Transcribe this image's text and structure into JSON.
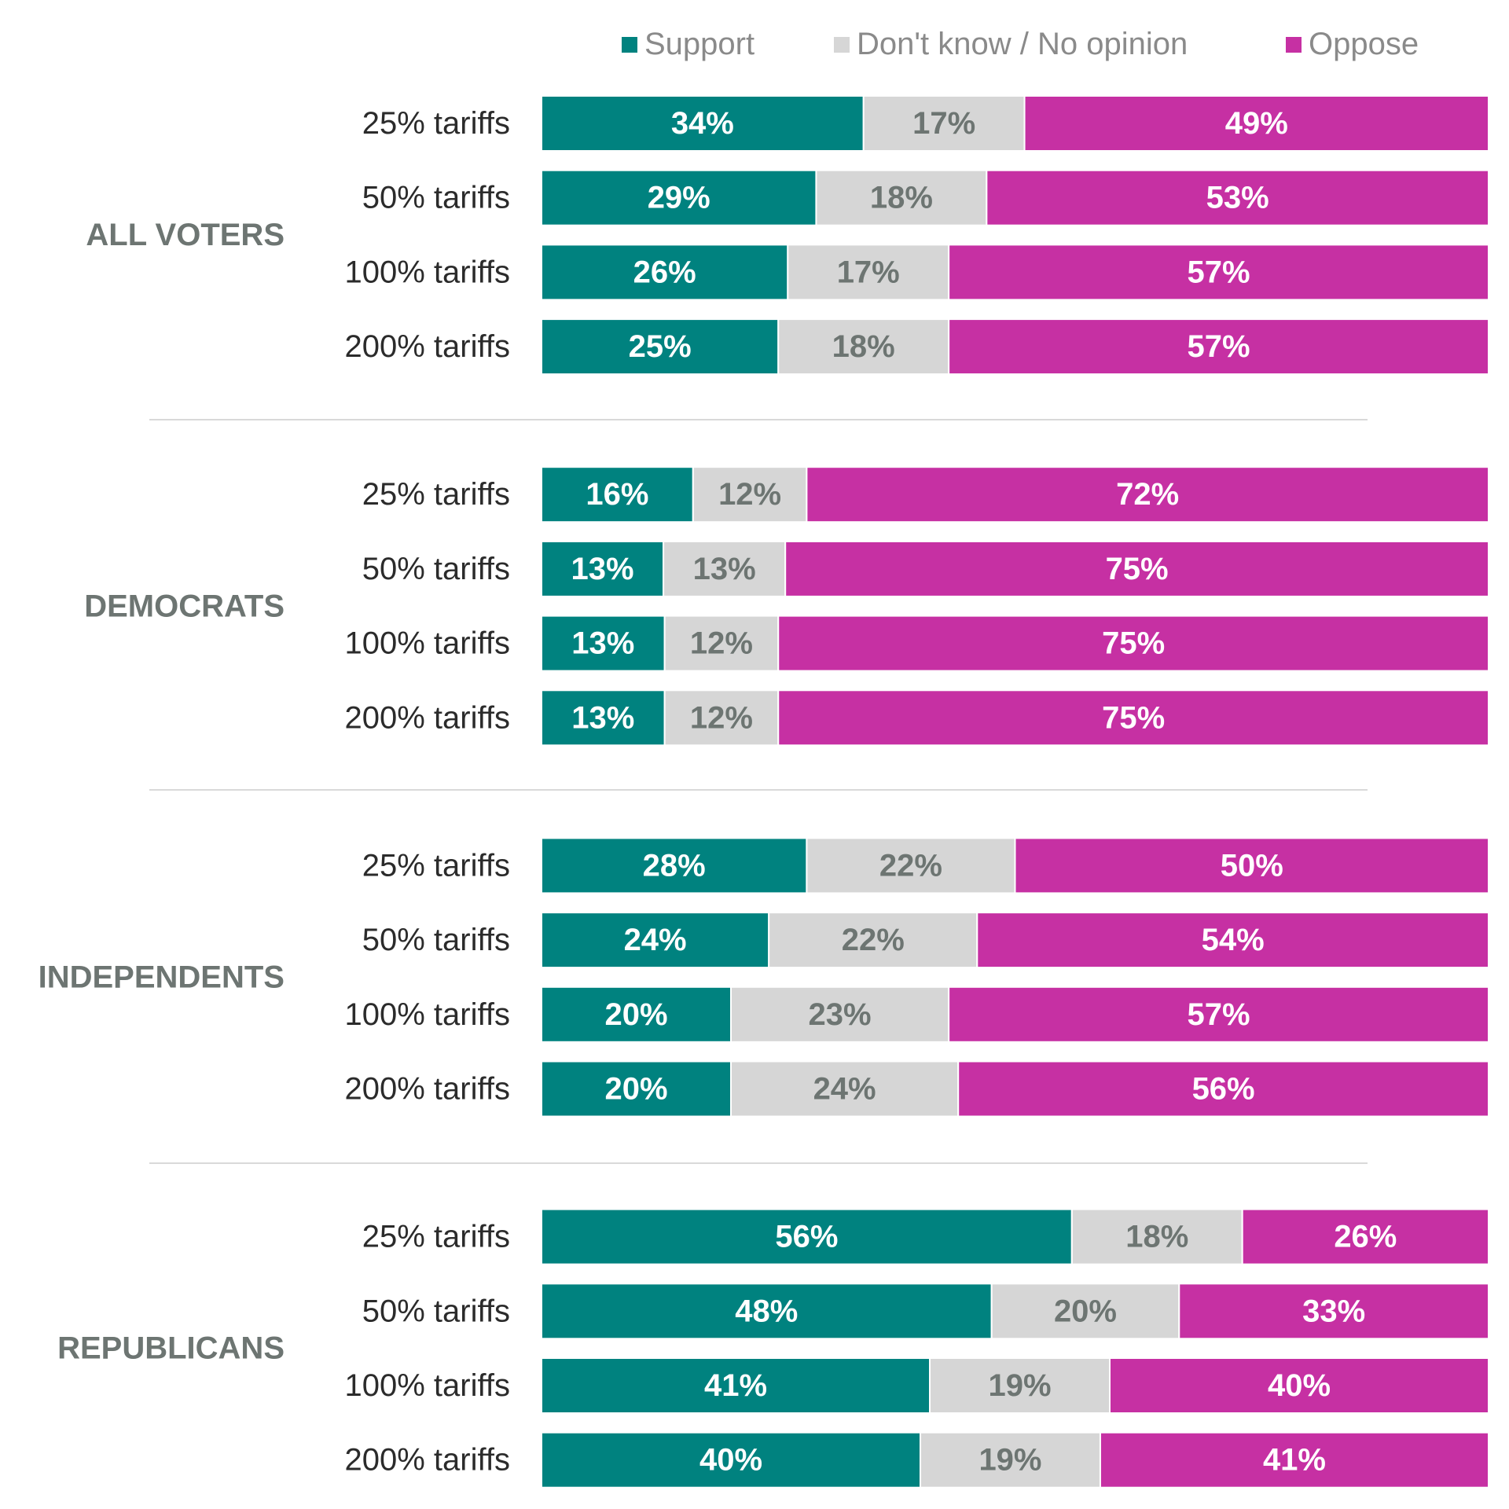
{
  "chart_data": {
    "type": "bar",
    "orientation": "horizontal",
    "stacked": true,
    "percent_stacked": true,
    "title": "",
    "xlabel": "",
    "ylabel": "",
    "legend_position": "top",
    "grid": false,
    "categories": [
      "25% tariffs",
      "50% tariffs",
      "100% tariffs",
      "200% tariffs"
    ],
    "series": [
      {
        "name": "Support",
        "color": "#00827f"
      },
      {
        "name": "Don't know / No opinion",
        "color": "#d6d6d6"
      },
      {
        "name": "Oppose",
        "color": "#c630a3"
      }
    ],
    "groups": [
      {
        "name": "ALL VOTERS",
        "rows": [
          [
            34,
            17,
            49
          ],
          [
            29,
            18,
            53
          ],
          [
            26,
            17,
            57
          ],
          [
            25,
            18,
            57
          ]
        ]
      },
      {
        "name": "DEMOCRATS",
        "rows": [
          [
            16,
            12,
            72
          ],
          [
            13,
            13,
            75
          ],
          [
            13,
            12,
            75
          ],
          [
            13,
            12,
            75
          ]
        ]
      },
      {
        "name": "INDEPENDENTS",
        "rows": [
          [
            28,
            22,
            50
          ],
          [
            24,
            22,
            54
          ],
          [
            20,
            23,
            57
          ],
          [
            20,
            24,
            56
          ]
        ]
      },
      {
        "name": "REPUBLICANS",
        "rows": [
          [
            56,
            18,
            26
          ],
          [
            48,
            20,
            33
          ],
          [
            41,
            19,
            40
          ],
          [
            40,
            19,
            41
          ]
        ]
      }
    ]
  },
  "colors": {
    "group_label": "#6d7572",
    "row_label": "#2b2b2b",
    "label_on_dark": "#ffffff",
    "label_on_light": "#6d7572",
    "divider": "#d9d9d9",
    "legend_text": "#8a8a8a"
  }
}
